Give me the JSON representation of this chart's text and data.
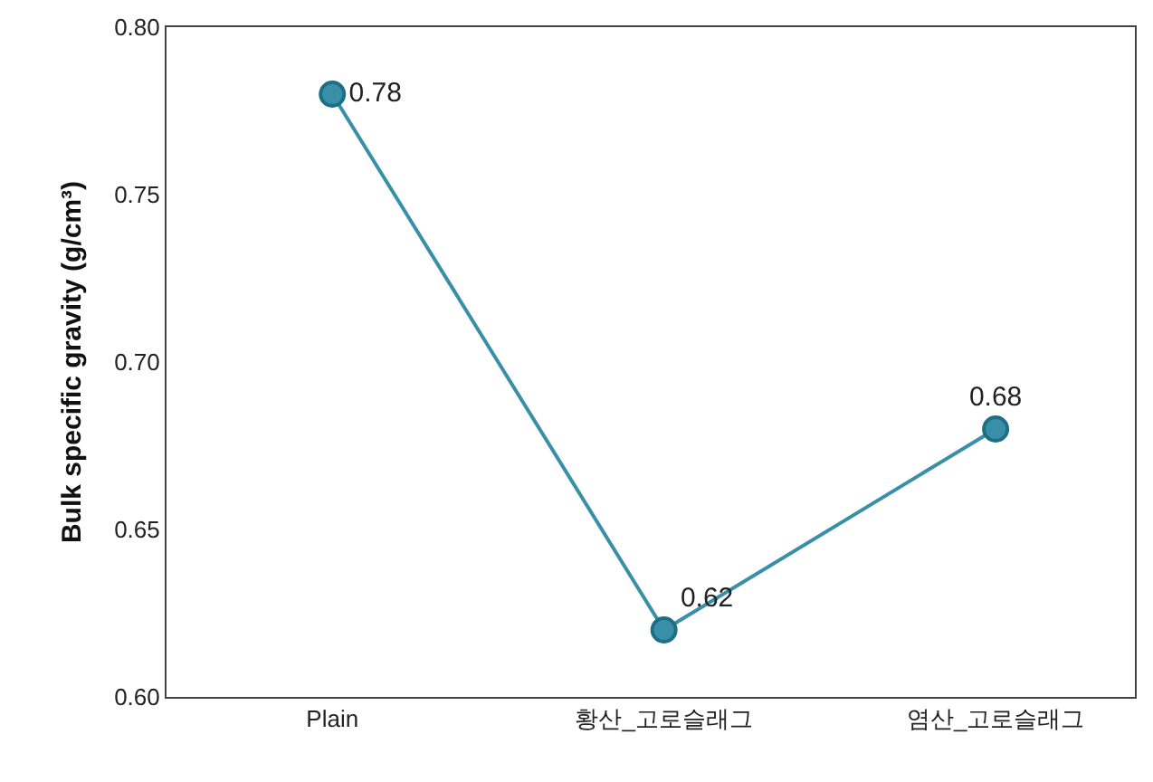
{
  "chart_data": {
    "type": "line",
    "ylabel": "Bulk specific gravity (g/cm³)",
    "categories": [
      "Plain",
      "황산_고로슬래그",
      "염산_고로슬래그"
    ],
    "series": [
      {
        "color": "#3a8fa8",
        "values": [
          0.78,
          0.62,
          0.68
        ]
      }
    ],
    "ylim": [
      0.6,
      0.8
    ],
    "yticks": [
      {
        "value": 0.6,
        "label": "0.60"
      },
      {
        "value": 0.65,
        "label": "0.65"
      },
      {
        "value": 0.7,
        "label": "0.70"
      },
      {
        "value": 0.75,
        "label": "0.75"
      },
      {
        "value": 0.8,
        "label": "0.80"
      }
    ],
    "grid": false,
    "marker": "circle",
    "line_style": "solid",
    "data_labels": true
  }
}
